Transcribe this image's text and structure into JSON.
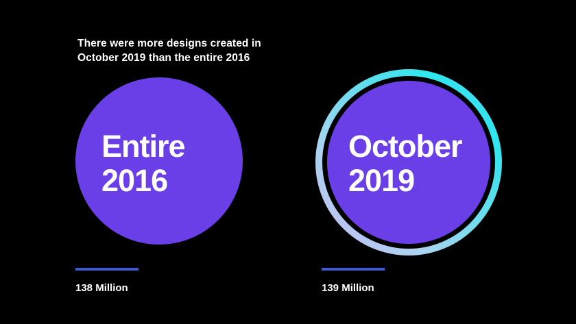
{
  "headline": {
    "line1": "There were more designs created in",
    "line2": "October 2019 than the entire 2016"
  },
  "left": {
    "label_line1": "Entire",
    "label_line2": "2016",
    "value": "138 Million"
  },
  "right": {
    "label_line1": "October",
    "label_line2": "2019",
    "value": "139 Million"
  },
  "colors": {
    "background": "#000000",
    "circle": "#6b3fe8",
    "bar": "#3b5bd6",
    "ring_gradient": [
      "#c9b8f2",
      "#53e0ec",
      "#5fd0f7"
    ],
    "text": "#ffffff"
  }
}
